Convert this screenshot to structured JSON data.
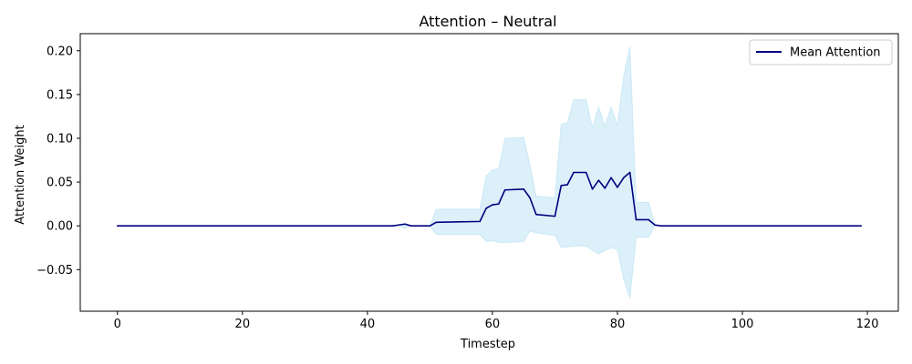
{
  "chart_data": {
    "type": "line",
    "title": "Attention – Neutral",
    "xlabel": "Timestep",
    "ylabel": "Attention Weight",
    "xlim": [
      -5.95,
      124.95
    ],
    "ylim": [
      -0.0975,
      0.2195
    ],
    "xticks": [
      0,
      20,
      40,
      60,
      80,
      100,
      120
    ],
    "yticks": [
      -0.05,
      0.0,
      0.05,
      0.1,
      0.15,
      0.2
    ],
    "xtick_labels": [
      "0",
      "20",
      "40",
      "60",
      "80",
      "100",
      "120"
    ],
    "ytick_labels": [
      "−0.05",
      "0.00",
      "0.05",
      "0.10",
      "0.15",
      "0.20"
    ],
    "grid": false,
    "legend_position": "top-right",
    "colors": {
      "line": "#000080",
      "band": "#87ceeb"
    },
    "series": [
      {
        "name": "Mean Attention",
        "x": [
          0,
          44,
          45,
          46,
          47,
          50,
          51,
          58,
          59,
          60,
          61,
          62,
          65,
          66,
          67,
          70,
          71,
          72,
          73,
          75,
          76,
          77,
          78,
          79,
          80,
          81,
          82,
          83,
          85,
          86,
          87,
          119
        ],
        "values": [
          0.0,
          0.0,
          0.001,
          0.002,
          0.0,
          0.0,
          0.004,
          0.005,
          0.02,
          0.024,
          0.025,
          0.041,
          0.042,
          0.032,
          0.013,
          0.011,
          0.046,
          0.047,
          0.061,
          0.061,
          0.042,
          0.052,
          0.043,
          0.055,
          0.044,
          0.055,
          0.061,
          0.007,
          0.007,
          0.001,
          0.0,
          0.0
        ]
      }
    ],
    "band": {
      "x": [
        0,
        44,
        45,
        46,
        47,
        50,
        51,
        58,
        59,
        60,
        61,
        62,
        65,
        66,
        67,
        70,
        71,
        72,
        73,
        75,
        76,
        77,
        78,
        79,
        80,
        81,
        82,
        83,
        85,
        86,
        87,
        119
      ],
      "upper": [
        0.0,
        0.0,
        0.001,
        0.003,
        0.0,
        0.0,
        0.019,
        0.019,
        0.057,
        0.064,
        0.065,
        0.1,
        0.101,
        0.07,
        0.034,
        0.032,
        0.116,
        0.118,
        0.144,
        0.144,
        0.112,
        0.136,
        0.114,
        0.136,
        0.115,
        0.171,
        0.205,
        0.027,
        0.027,
        0.002,
        0.0,
        0.0
      ],
      "lower": [
        0.0,
        0.0,
        0.0,
        -0.003,
        0.0,
        0.0,
        -0.01,
        -0.01,
        -0.018,
        -0.017,
        -0.019,
        -0.019,
        -0.018,
        -0.006,
        -0.008,
        -0.011,
        -0.025,
        -0.024,
        -0.023,
        -0.023,
        -0.028,
        -0.032,
        -0.028,
        -0.025,
        -0.027,
        -0.061,
        -0.083,
        -0.013,
        -0.013,
        0.0,
        0.0,
        0.0
      ]
    }
  }
}
